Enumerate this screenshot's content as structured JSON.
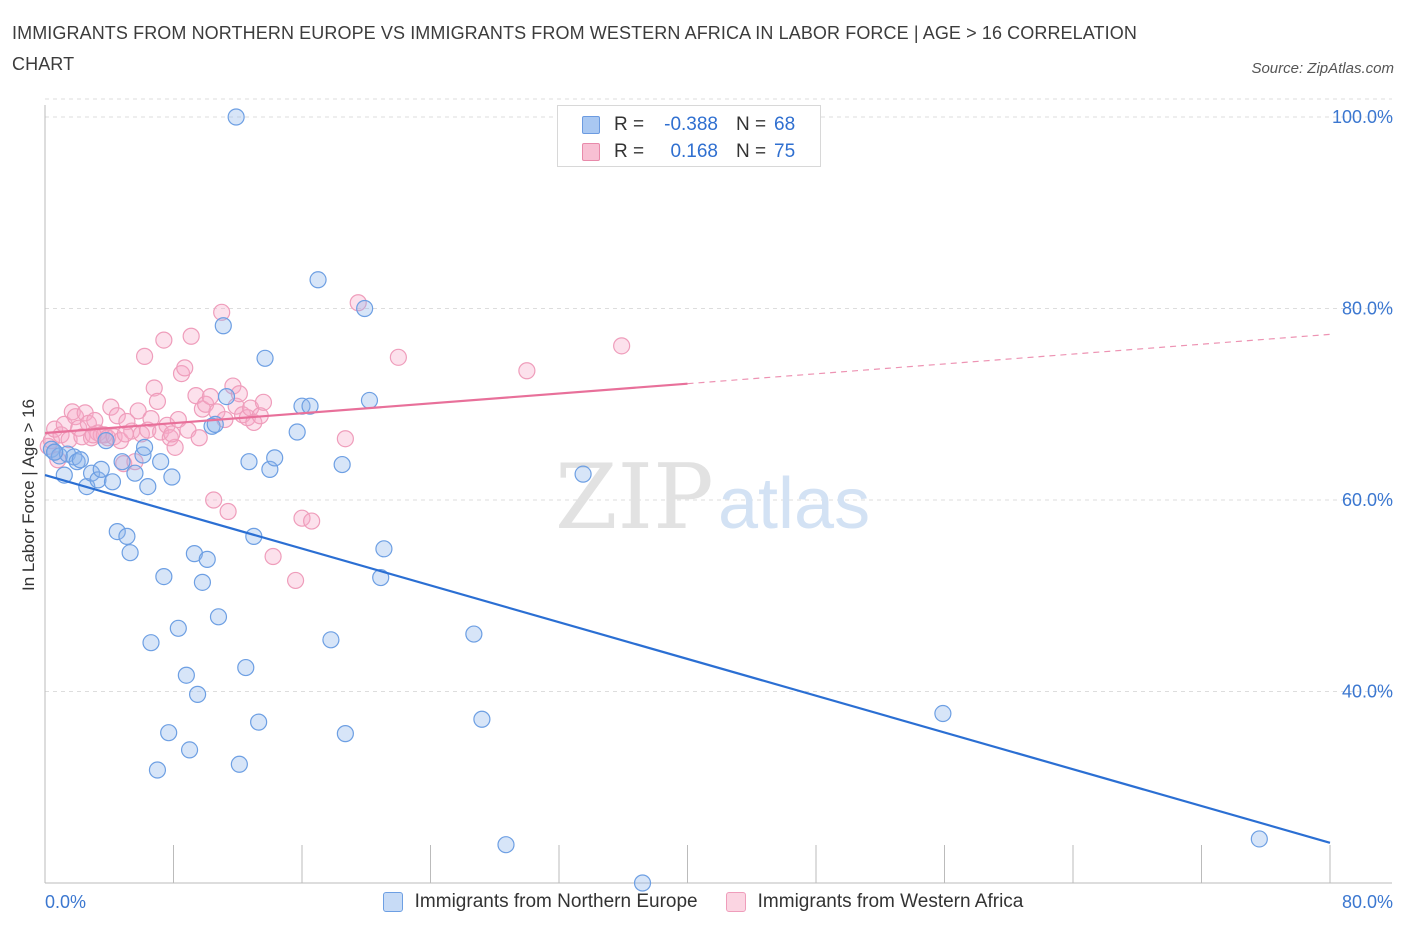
{
  "header": {
    "title": "IMMIGRANTS FROM NORTHERN EUROPE VS IMMIGRANTS FROM WESTERN AFRICA IN LABOR FORCE | AGE > 16 CORRELATION CHART",
    "source": "Source: ZipAtlas.com"
  },
  "watermark": {
    "zip": "ZIP",
    "atlas": "atlas"
  },
  "stats_legend": {
    "rows": [
      {
        "r_label": "R =",
        "r_value": "-0.388",
        "n_label": "N =",
        "n_value": "68",
        "color": "#a9c8f2",
        "border": "#6c9be0"
      },
      {
        "r_label": "R =",
        "r_value": "0.168",
        "n_label": "N =",
        "n_value": "75",
        "color": "#f8c0d3",
        "border": "#e88aaa"
      }
    ]
  },
  "colors": {
    "blue_fill": "rgba(140,180,235,0.35)",
    "blue_stroke": "#6d9fe3",
    "blue_line": "#2b6fd3",
    "pink_fill": "rgba(245,170,200,0.35)",
    "pink_stroke": "#ef9dbb",
    "pink_line": "#e8709a",
    "axis_label": "#3b77d0",
    "grid": "#dddddd"
  },
  "chart_data": {
    "type": "scatter",
    "title": "IMMIGRANTS FROM NORTHERN EUROPE VS IMMIGRANTS FROM WESTERN AFRICA IN LABOR FORCE | AGE > 16 CORRELATION CHART",
    "xlabel": "",
    "ylabel": "In Labor Force | Age > 16",
    "xlim": [
      0,
      80
    ],
    "ylim": [
      20,
      100
    ],
    "x_tick_labels": [
      "0.0%",
      "80.0%"
    ],
    "y_ticks": [
      40,
      60,
      80,
      100
    ],
    "y_tick_labels": [
      "40.0%",
      "60.0%",
      "80.0%",
      "100.0%"
    ],
    "grid": true,
    "series": [
      {
        "name": "Immigrants from Northern Europe",
        "color": "#6d9fe3",
        "trend": {
          "x": [
            0,
            80
          ],
          "y": [
            62.6,
            24.2
          ],
          "dashed_from": null
        },
        "points": [
          [
            0.4,
            65.3
          ],
          [
            0.6,
            65.0
          ],
          [
            0.9,
            64.6
          ],
          [
            1.2,
            62.6
          ],
          [
            1.4,
            64.8
          ],
          [
            1.8,
            64.5
          ],
          [
            2.0,
            64.0
          ],
          [
            2.2,
            64.2
          ],
          [
            2.6,
            61.4
          ],
          [
            2.9,
            62.8
          ],
          [
            3.3,
            62.1
          ],
          [
            3.5,
            63.2
          ],
          [
            3.8,
            66.2
          ],
          [
            4.2,
            61.9
          ],
          [
            4.5,
            56.7
          ],
          [
            4.8,
            64.0
          ],
          [
            5.1,
            56.2
          ],
          [
            5.3,
            54.5
          ],
          [
            5.6,
            62.8
          ],
          [
            6.1,
            64.7
          ],
          [
            6.2,
            65.5
          ],
          [
            6.4,
            61.4
          ],
          [
            6.6,
            45.1
          ],
          [
            7.0,
            31.8
          ],
          [
            7.2,
            64.0
          ],
          [
            7.4,
            52.0
          ],
          [
            7.7,
            35.7
          ],
          [
            7.9,
            62.4
          ],
          [
            8.3,
            46.6
          ],
          [
            8.8,
            41.7
          ],
          [
            9.0,
            33.9
          ],
          [
            9.3,
            54.4
          ],
          [
            9.5,
            39.7
          ],
          [
            9.8,
            51.4
          ],
          [
            10.1,
            53.8
          ],
          [
            10.4,
            67.7
          ],
          [
            10.6,
            67.9
          ],
          [
            10.8,
            47.8
          ],
          [
            11.1,
            78.2
          ],
          [
            11.3,
            70.8
          ],
          [
            11.9,
            100.0
          ],
          [
            12.1,
            32.4
          ],
          [
            12.5,
            42.5
          ],
          [
            12.7,
            64.0
          ],
          [
            13.0,
            56.2
          ],
          [
            13.3,
            36.8
          ],
          [
            13.7,
            74.8
          ],
          [
            14.0,
            63.2
          ],
          [
            14.3,
            64.4
          ],
          [
            15.7,
            67.1
          ],
          [
            16.0,
            69.8
          ],
          [
            16.5,
            69.8
          ],
          [
            17.0,
            83.0
          ],
          [
            17.8,
            45.4
          ],
          [
            18.5,
            63.7
          ],
          [
            18.7,
            35.6
          ],
          [
            19.9,
            80.0
          ],
          [
            20.2,
            70.4
          ],
          [
            20.9,
            51.9
          ],
          [
            21.1,
            54.9
          ],
          [
            26.7,
            46.0
          ],
          [
            27.2,
            37.1
          ],
          [
            28.7,
            24.0
          ],
          [
            33.5,
            62.7
          ],
          [
            37.2,
            20.0
          ],
          [
            55.9,
            37.7
          ],
          [
            75.6,
            24.6
          ],
          [
            0.6,
            65.0
          ]
        ]
      },
      {
        "name": "Immigrants from Western Africa",
        "color": "#ef9dbb",
        "trend": {
          "x": [
            0,
            80
          ],
          "y": [
            67.0,
            77.3
          ],
          "dashed_from": 40
        },
        "points": [
          [
            0.2,
            65.6
          ],
          [
            0.4,
            66.2
          ],
          [
            0.6,
            67.4
          ],
          [
            0.8,
            64.2
          ],
          [
            1.0,
            66.8
          ],
          [
            1.2,
            67.9
          ],
          [
            1.5,
            66.3
          ],
          [
            1.7,
            69.2
          ],
          [
            1.9,
            68.7
          ],
          [
            2.1,
            67.5
          ],
          [
            2.3,
            66.6
          ],
          [
            2.5,
            69.1
          ],
          [
            2.7,
            68.0
          ],
          [
            2.9,
            66.5
          ],
          [
            3.1,
            68.3
          ],
          [
            3.3,
            67.0
          ],
          [
            3.5,
            66.8
          ],
          [
            3.7,
            66.8
          ],
          [
            3.9,
            66.5
          ],
          [
            4.1,
            69.7
          ],
          [
            4.3,
            66.6
          ],
          [
            4.5,
            68.8
          ],
          [
            4.7,
            66.2
          ],
          [
            4.9,
            63.8
          ],
          [
            5.1,
            68.2
          ],
          [
            5.4,
            67.2
          ],
          [
            5.6,
            64.0
          ],
          [
            5.8,
            69.3
          ],
          [
            6.0,
            66.9
          ],
          [
            6.2,
            75.0
          ],
          [
            6.4,
            67.3
          ],
          [
            6.6,
            68.5
          ],
          [
            6.8,
            71.7
          ],
          [
            7.0,
            70.3
          ],
          [
            7.2,
            67.1
          ],
          [
            7.4,
            76.7
          ],
          [
            7.6,
            67.8
          ],
          [
            7.8,
            66.5
          ],
          [
            8.1,
            65.5
          ],
          [
            8.3,
            68.4
          ],
          [
            8.5,
            73.2
          ],
          [
            8.7,
            73.8
          ],
          [
            8.9,
            67.3
          ],
          [
            9.1,
            77.1
          ],
          [
            9.4,
            70.9
          ],
          [
            9.6,
            66.5
          ],
          [
            9.8,
            69.5
          ],
          [
            10.0,
            70.0
          ],
          [
            10.3,
            70.8
          ],
          [
            10.5,
            60.0
          ],
          [
            10.7,
            69.2
          ],
          [
            11.0,
            79.6
          ],
          [
            11.2,
            68.4
          ],
          [
            11.4,
            58.8
          ],
          [
            11.7,
            71.9
          ],
          [
            11.9,
            69.8
          ],
          [
            12.1,
            71.1
          ],
          [
            12.3,
            68.9
          ],
          [
            12.6,
            68.6
          ],
          [
            12.8,
            69.6
          ],
          [
            13.0,
            68.1
          ],
          [
            13.4,
            68.8
          ],
          [
            13.6,
            70.2
          ],
          [
            14.2,
            54.1
          ],
          [
            15.6,
            51.6
          ],
          [
            16.0,
            58.1
          ],
          [
            16.6,
            57.8
          ],
          [
            18.7,
            66.4
          ],
          [
            19.5,
            80.6
          ],
          [
            22.0,
            74.9
          ],
          [
            30.0,
            73.5
          ],
          [
            35.9,
            76.1
          ],
          [
            3.0,
            66.8
          ],
          [
            5.0,
            66.9
          ],
          [
            7.9,
            66.9
          ]
        ]
      }
    ],
    "legend_placement": "top-center and bottom",
    "annotations": []
  },
  "bottom_legend": {
    "items": [
      {
        "label": "Immigrants from Northern Europe",
        "color": "#c7dbf6",
        "border": "#6d9fe3"
      },
      {
        "label": "Immigrants from Western Africa",
        "color": "#fbd5e2",
        "border": "#ef9dbb"
      }
    ]
  }
}
